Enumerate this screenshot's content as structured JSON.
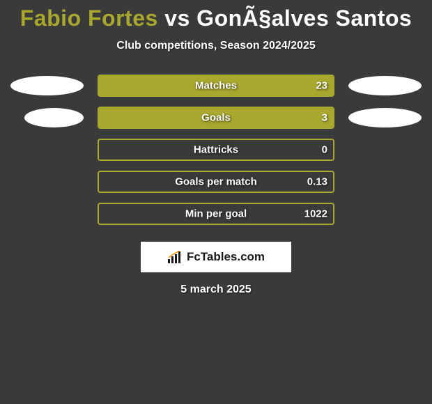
{
  "title": {
    "part1": "Fabio Fortes",
    "vs": " vs ",
    "part2": "GonÃ§alves Santos",
    "color1": "#a8a82e",
    "color2": "#ffffff"
  },
  "subtitle": "Club competitions, Season 2024/2025",
  "colors": {
    "background": "#3a3a3a",
    "bar_border": "#a8a82e",
    "bar_fill": "#a8a82e",
    "ellipse": "#ffffff",
    "text": "#ffffff"
  },
  "bar_area_width": 336,
  "stats": [
    {
      "label": "Matches",
      "value": "23",
      "fill_pct": 100,
      "show_ellipses": true,
      "ellipse_left_indent": 0,
      "ellipse_right_indent": 0
    },
    {
      "label": "Goals",
      "value": "3",
      "fill_pct": 100,
      "show_ellipses": true,
      "ellipse_left_indent": 20,
      "ellipse_right_indent": 0
    },
    {
      "label": "Hattricks",
      "value": "0",
      "fill_pct": 0,
      "show_ellipses": false
    },
    {
      "label": "Goals per match",
      "value": "0.13",
      "fill_pct": 0,
      "show_ellipses": false
    },
    {
      "label": "Min per goal",
      "value": "1022",
      "fill_pct": 0,
      "show_ellipses": false
    }
  ],
  "logo": {
    "text": "FcTables.com",
    "bar_color": "#1a1a1a",
    "line_color": "#ff8c00"
  },
  "date": "5 march 2025"
}
